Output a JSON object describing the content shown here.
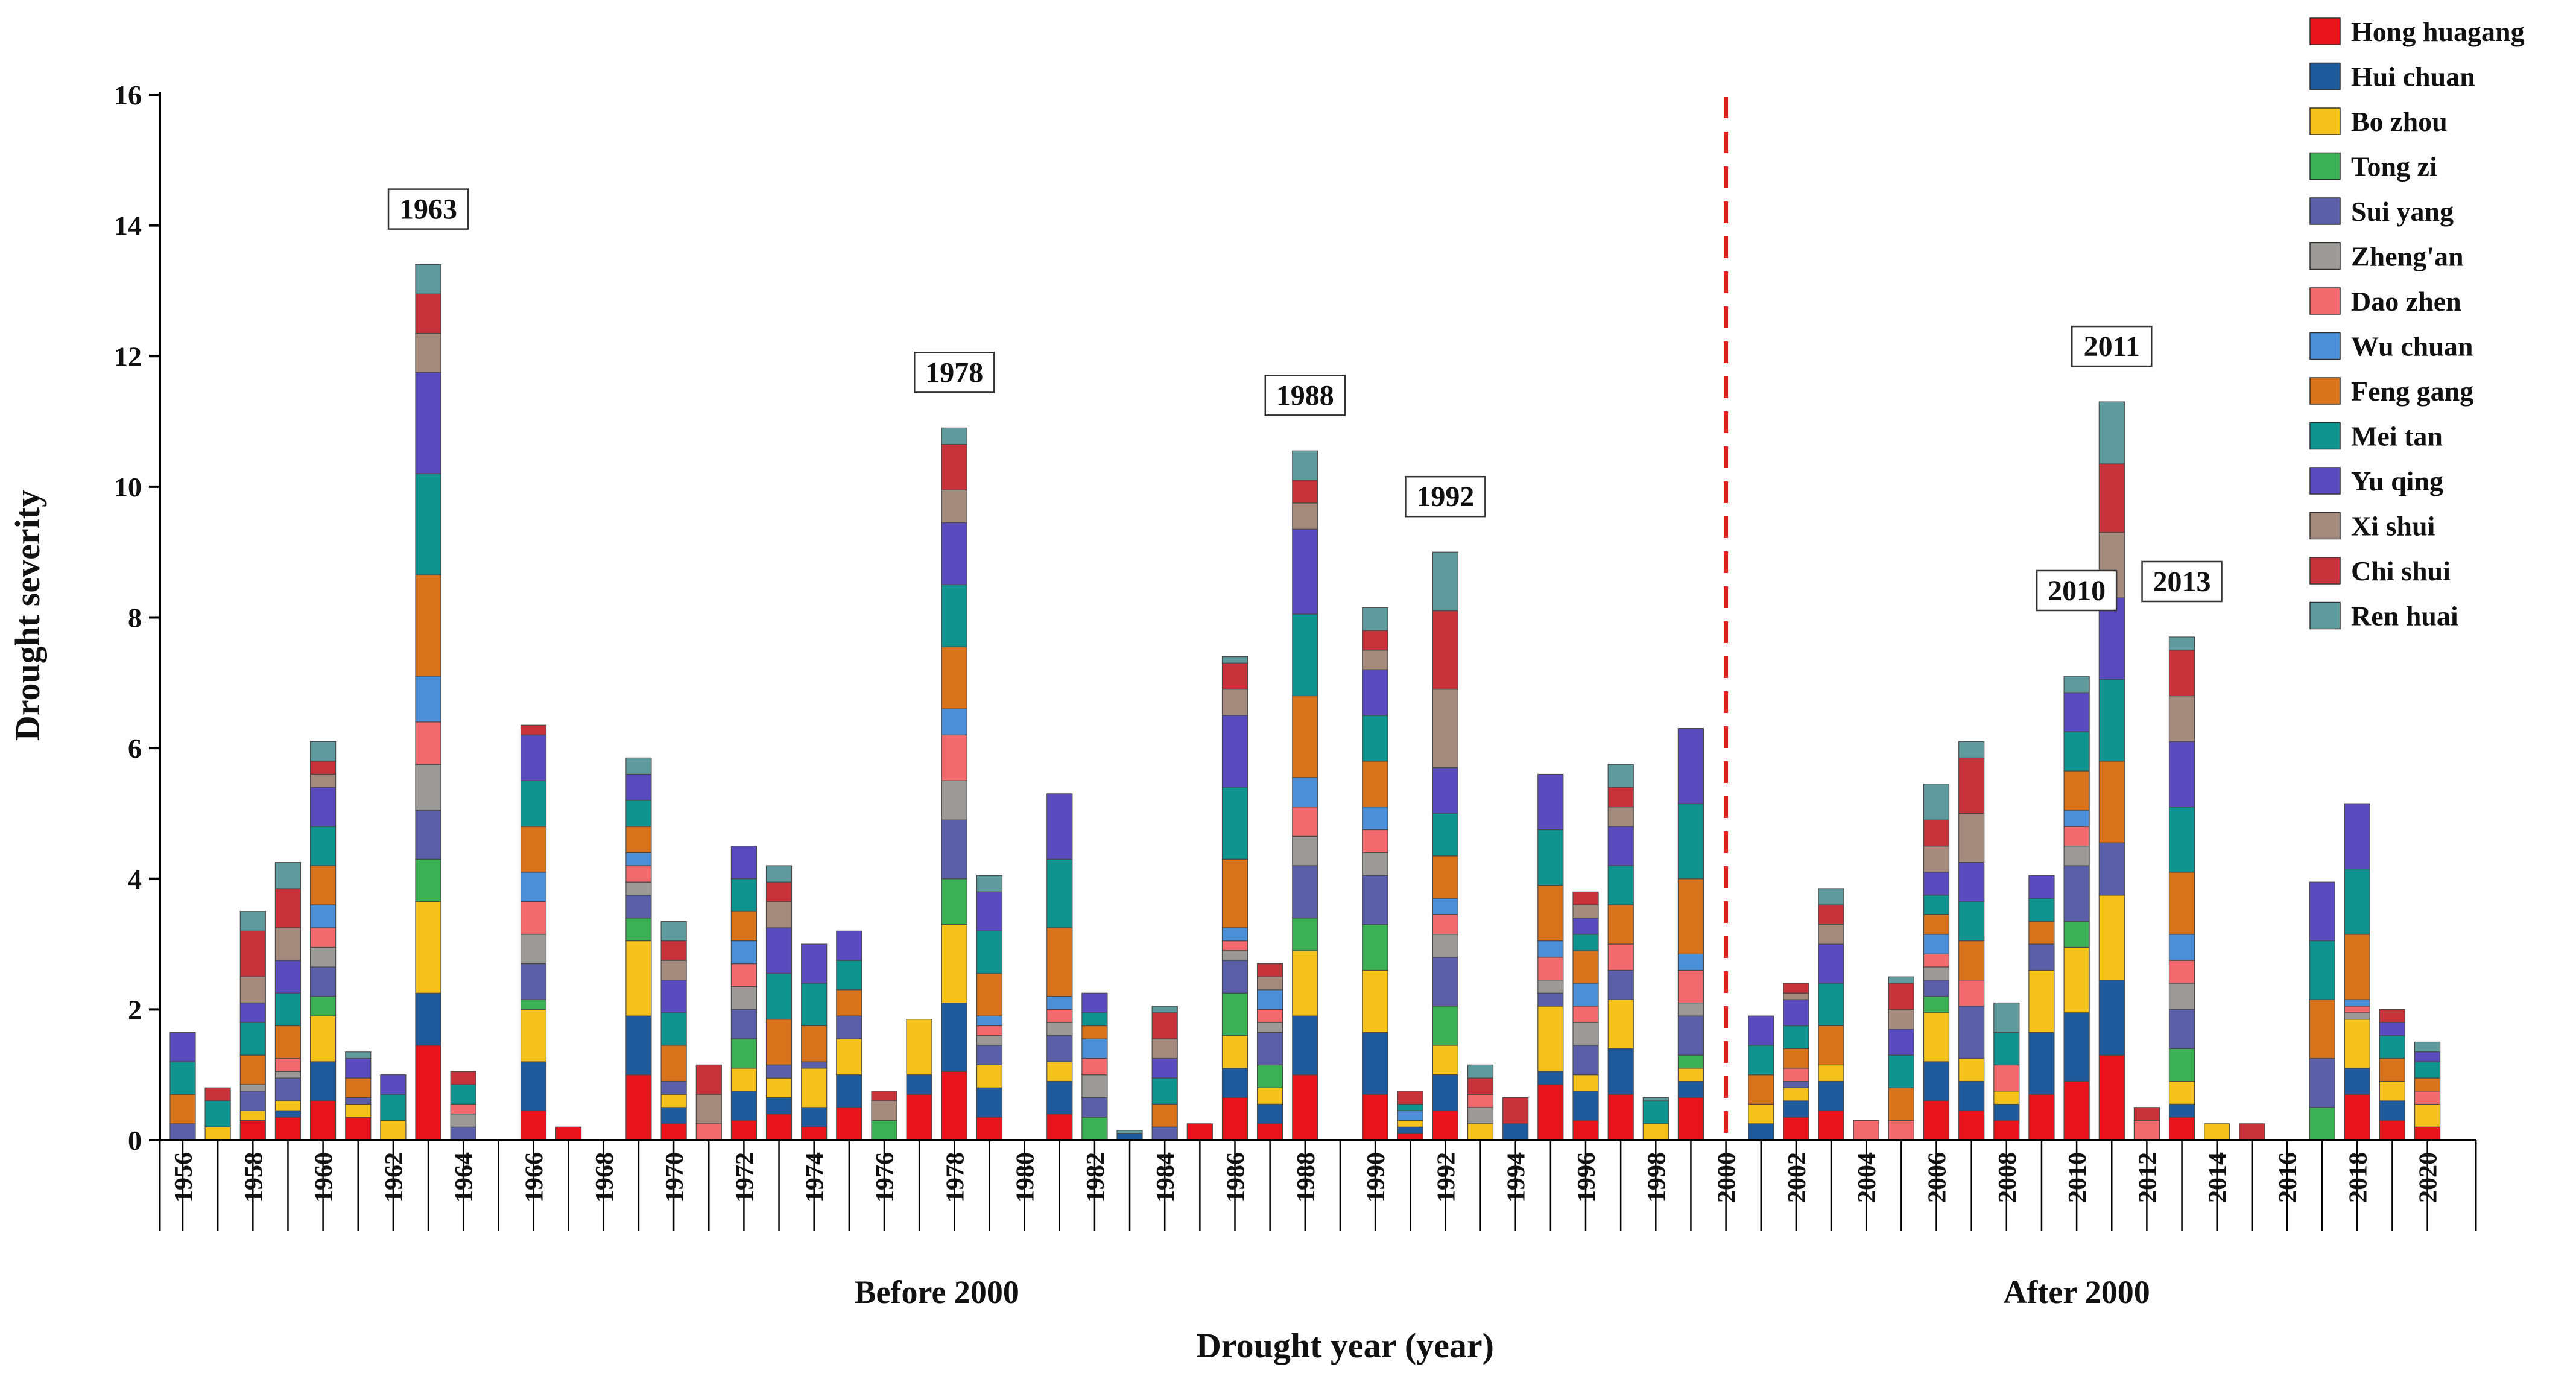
{
  "chart_data": {
    "type": "bar",
    "stacked": true,
    "ylabel": "Drought severity",
    "xlabel": "Drought year (year)",
    "ylim": [
      0,
      16
    ],
    "y_ticks": [
      0,
      2,
      4,
      6,
      8,
      10,
      12,
      14,
      16
    ],
    "x_range": [
      1956,
      2020
    ],
    "x_tick_step": 2,
    "period_labels": [
      {
        "text": "Before 2000",
        "center_year": 1977.5
      },
      {
        "text": "After 2000",
        "center_year": 2010
      }
    ],
    "divider_year": 2000,
    "divider_color": "#e0201c",
    "legend_position": "top-right",
    "annotations": [
      {
        "text": "1963",
        "year": 1963
      },
      {
        "text": "1978",
        "year": 1978
      },
      {
        "text": "1988",
        "year": 1988
      },
      {
        "text": "1992",
        "year": 1992
      },
      {
        "text": "2010",
        "year": 2010
      },
      {
        "text": "2011",
        "year": 2011
      },
      {
        "text": "2013",
        "year": 2013
      }
    ],
    "series": [
      {
        "name": "Hong huagang",
        "color": "#e8141c"
      },
      {
        "name": "Hui chuan",
        "color": "#1f5a9c"
      },
      {
        "name": "Bo zhou",
        "color": "#f5c21b"
      },
      {
        "name": "Tong zi",
        "color": "#3cb054"
      },
      {
        "name": "Sui yang",
        "color": "#5b5ea8"
      },
      {
        "name": "Zheng'an",
        "color": "#9c9a96"
      },
      {
        "name": "Dao zhen",
        "color": "#f26a6e"
      },
      {
        "name": "Wu chuan",
        "color": "#4a8fd8"
      },
      {
        "name": "Feng gang",
        "color": "#d8731c"
      },
      {
        "name": "Mei tan",
        "color": "#0f9490"
      },
      {
        "name": "Yu qing",
        "color": "#5a4cbe"
      },
      {
        "name": "Xi shui",
        "color": "#a48a7c"
      },
      {
        "name": "Chi shui",
        "color": "#c8323a"
      },
      {
        "name": "Ren huai",
        "color": "#5f9a9c"
      }
    ],
    "years": [
      {
        "year": 1956,
        "values": [
          0,
          0,
          0,
          0,
          0.25,
          0,
          0,
          0,
          0.45,
          0.5,
          0.45,
          0,
          0,
          0
        ]
      },
      {
        "year": 1957,
        "values": [
          0,
          0,
          0.2,
          0,
          0,
          0,
          0,
          0,
          0,
          0.4,
          0,
          0,
          0.2,
          0
        ]
      },
      {
        "year": 1958,
        "values": [
          0.3,
          0,
          0.15,
          0,
          0.3,
          0.1,
          0,
          0,
          0.45,
          0.5,
          0.3,
          0.4,
          0.7,
          0.3
        ]
      },
      {
        "year": 1959,
        "values": [
          0.35,
          0.1,
          0.15,
          0,
          0.35,
          0.1,
          0.2,
          0,
          0.5,
          0.5,
          0.5,
          0.5,
          0.6,
          0.4
        ]
      },
      {
        "year": 1960,
        "values": [
          0.6,
          0.6,
          0.7,
          0.3,
          0.45,
          0.3,
          0.3,
          0.35,
          0.6,
          0.6,
          0.6,
          0.2,
          0.2,
          0.3
        ]
      },
      {
        "year": 1961,
        "values": [
          0.35,
          0,
          0.2,
          0,
          0.1,
          0,
          0,
          0,
          0.3,
          0,
          0.3,
          0,
          0,
          0.1
        ]
      },
      {
        "year": 1962,
        "values": [
          0,
          0,
          0.3,
          0,
          0,
          0,
          0,
          0,
          0,
          0.4,
          0.3,
          0,
          0,
          0
        ]
      },
      {
        "year": 1963,
        "values": [
          1.45,
          0.8,
          1.4,
          0.65,
          0.75,
          0.7,
          0.65,
          0.7,
          1.55,
          1.55,
          1.55,
          0.6,
          0.6,
          0.45
        ]
      },
      {
        "year": 1964,
        "values": [
          0,
          0,
          0,
          0,
          0.2,
          0.2,
          0.15,
          0,
          0,
          0.3,
          0,
          0,
          0.2,
          0
        ]
      },
      {
        "year": 1966,
        "values": [
          0.45,
          0.75,
          0.8,
          0.15,
          0.55,
          0.45,
          0.5,
          0.45,
          0.7,
          0.7,
          0.7,
          0,
          0.15,
          0
        ]
      },
      {
        "year": 1967,
        "values": [
          0.2,
          0,
          0,
          0,
          0,
          0,
          0,
          0,
          0,
          0,
          0,
          0,
          0,
          0
        ]
      },
      {
        "year": 1969,
        "values": [
          1.0,
          0.9,
          1.15,
          0.35,
          0.35,
          0.2,
          0.25,
          0.2,
          0.4,
          0.4,
          0.4,
          0,
          0,
          0.25
        ]
      },
      {
        "year": 1970,
        "values": [
          0.25,
          0.25,
          0.2,
          0,
          0.2,
          0,
          0,
          0,
          0.55,
          0.5,
          0.5,
          0.3,
          0.3,
          0.3
        ]
      },
      {
        "year": 1971,
        "values": [
          0,
          0,
          0,
          0,
          0,
          0,
          0.25,
          0,
          0,
          0,
          0,
          0.45,
          0.45,
          0
        ]
      },
      {
        "year": 1972,
        "values": [
          0.3,
          0.45,
          0.35,
          0.45,
          0.45,
          0.35,
          0.35,
          0.35,
          0.45,
          0.5,
          0.5,
          0,
          0,
          0
        ]
      },
      {
        "year": 1973,
        "values": [
          0.4,
          0.25,
          0.3,
          0,
          0.2,
          0,
          0,
          0,
          0.7,
          0.7,
          0.7,
          0.4,
          0.3,
          0.25
        ]
      },
      {
        "year": 1974,
        "values": [
          0.2,
          0.3,
          0.6,
          0,
          0.1,
          0,
          0,
          0,
          0.55,
          0.65,
          0.6,
          0,
          0,
          0
        ]
      },
      {
        "year": 1975,
        "values": [
          0.5,
          0.5,
          0.55,
          0,
          0.35,
          0,
          0,
          0,
          0.4,
          0.45,
          0.45,
          0,
          0,
          0
        ]
      },
      {
        "year": 1976,
        "values": [
          0,
          0,
          0,
          0.3,
          0,
          0,
          0,
          0,
          0,
          0,
          0,
          0.3,
          0.15,
          0
        ]
      },
      {
        "year": 1977,
        "values": [
          0.7,
          0.3,
          0.85,
          0,
          0,
          0,
          0,
          0,
          0,
          0,
          0,
          0,
          0,
          0
        ]
      },
      {
        "year": 1978,
        "values": [
          1.05,
          1.05,
          1.2,
          0.7,
          0.9,
          0.6,
          0.7,
          0.4,
          0.95,
          0.95,
          0.95,
          0.5,
          0.7,
          0.25
        ]
      },
      {
        "year": 1979,
        "values": [
          0.35,
          0.45,
          0.35,
          0,
          0.3,
          0.15,
          0.15,
          0.15,
          0.65,
          0.65,
          0.6,
          0,
          0,
          0.25
        ]
      },
      {
        "year": 1981,
        "values": [
          0.4,
          0.5,
          0.3,
          0,
          0.4,
          0.2,
          0.2,
          0.2,
          1.05,
          1.05,
          1.0,
          0,
          0,
          0
        ]
      },
      {
        "year": 1982,
        "values": [
          0,
          0,
          0,
          0.35,
          0.3,
          0.35,
          0.25,
          0.3,
          0.2,
          0.2,
          0.3,
          0,
          0,
          0
        ]
      },
      {
        "year": 1983,
        "values": [
          0,
          0.1,
          0,
          0,
          0,
          0,
          0,
          0,
          0,
          0,
          0,
          0,
          0,
          0.05
        ]
      },
      {
        "year": 1984,
        "values": [
          0,
          0,
          0,
          0,
          0.2,
          0,
          0,
          0,
          0.35,
          0.4,
          0.3,
          0.3,
          0.4,
          0.1
        ]
      },
      {
        "year": 1985,
        "values": [
          0.25,
          0,
          0,
          0,
          0,
          0,
          0,
          0,
          0,
          0,
          0,
          0,
          0,
          0
        ]
      },
      {
        "year": 1986,
        "values": [
          0.65,
          0.45,
          0.5,
          0.65,
          0.5,
          0.15,
          0.15,
          0.2,
          1.05,
          1.1,
          1.1,
          0.4,
          0.4,
          0.1
        ]
      },
      {
        "year": 1987,
        "values": [
          0.25,
          0.3,
          0.25,
          0.35,
          0.5,
          0.15,
          0.2,
          0.3,
          0,
          0,
          0,
          0.2,
          0.2,
          0
        ]
      },
      {
        "year": 1988,
        "values": [
          1.0,
          0.9,
          1.0,
          0.5,
          0.8,
          0.45,
          0.45,
          0.45,
          1.25,
          1.25,
          1.3,
          0.4,
          0.35,
          0.45
        ]
      },
      {
        "year": 1990,
        "values": [
          0.7,
          0.95,
          0.95,
          0.7,
          0.75,
          0.35,
          0.35,
          0.35,
          0.7,
          0.7,
          0.7,
          0.3,
          0.3,
          0.35
        ]
      },
      {
        "year": 1991,
        "values": [
          0.1,
          0.1,
          0.1,
          0,
          0,
          0,
          0,
          0.15,
          0,
          0.1,
          0,
          0,
          0.2,
          0
        ]
      },
      {
        "year": 1992,
        "values": [
          0.45,
          0.55,
          0.45,
          0.6,
          0.75,
          0.35,
          0.3,
          0.25,
          0.65,
          0.65,
          0.7,
          1.2,
          1.2,
          0.9
        ]
      },
      {
        "year": 1993,
        "values": [
          0,
          0,
          0.25,
          0,
          0,
          0.25,
          0.2,
          0,
          0,
          0,
          0,
          0,
          0.25,
          0.2
        ]
      },
      {
        "year": 1994,
        "values": [
          0,
          0.25,
          0,
          0,
          0,
          0,
          0,
          0,
          0,
          0,
          0,
          0,
          0.4,
          0
        ]
      },
      {
        "year": 1995,
        "values": [
          0.85,
          0.2,
          1.0,
          0,
          0.2,
          0.2,
          0.35,
          0.25,
          0.85,
          0.85,
          0.85,
          0,
          0,
          0
        ]
      },
      {
        "year": 1996,
        "values": [
          0.3,
          0.45,
          0.25,
          0,
          0.45,
          0.35,
          0.25,
          0.35,
          0.5,
          0.25,
          0.25,
          0.2,
          0.2,
          0
        ]
      },
      {
        "year": 1997,
        "values": [
          0.7,
          0.7,
          0.75,
          0,
          0.45,
          0,
          0.4,
          0,
          0.6,
          0.6,
          0.6,
          0.3,
          0.3,
          0.35
        ]
      },
      {
        "year": 1998,
        "values": [
          0,
          0,
          0.25,
          0,
          0,
          0,
          0,
          0,
          0,
          0.35,
          0,
          0,
          0,
          0.05
        ]
      },
      {
        "year": 1999,
        "values": [
          0.65,
          0.25,
          0.2,
          0.2,
          0.6,
          0.2,
          0.5,
          0.25,
          1.15,
          1.15,
          1.15,
          0,
          0,
          0
        ]
      },
      {
        "year": 2001,
        "values": [
          0,
          0.25,
          0.3,
          0,
          0,
          0,
          0,
          0,
          0.45,
          0.45,
          0.45,
          0,
          0,
          0
        ]
      },
      {
        "year": 2002,
        "values": [
          0.35,
          0.25,
          0.2,
          0,
          0.1,
          0,
          0.2,
          0,
          0.3,
          0.35,
          0.4,
          0.1,
          0.15,
          0
        ]
      },
      {
        "year": 2003,
        "values": [
          0.45,
          0.45,
          0.25,
          0,
          0,
          0,
          0,
          0,
          0.6,
          0.65,
          0.6,
          0.3,
          0.3,
          0.25
        ]
      },
      {
        "year": 2004,
        "values": [
          0,
          0,
          0,
          0,
          0,
          0,
          0.3,
          0,
          0,
          0,
          0,
          0,
          0,
          0
        ]
      },
      {
        "year": 2005,
        "values": [
          0,
          0,
          0,
          0,
          0,
          0,
          0.3,
          0,
          0.5,
          0.5,
          0.4,
          0.3,
          0.4,
          0.1
        ]
      },
      {
        "year": 2006,
        "values": [
          0.6,
          0.6,
          0.75,
          0.25,
          0.25,
          0.2,
          0.2,
          0.3,
          0.3,
          0.3,
          0.35,
          0.4,
          0.4,
          0.55
        ]
      },
      {
        "year": 2007,
        "values": [
          0.45,
          0.45,
          0.35,
          0,
          0.8,
          0,
          0.4,
          0,
          0.6,
          0.6,
          0.6,
          0.75,
          0.85,
          0.25
        ]
      },
      {
        "year": 2008,
        "values": [
          0.3,
          0.25,
          0.2,
          0,
          0,
          0,
          0.4,
          0,
          0,
          0.5,
          0,
          0,
          0,
          0.45
        ]
      },
      {
        "year": 2009,
        "values": [
          0.7,
          0.95,
          0.95,
          0,
          0.4,
          0,
          0,
          0,
          0.35,
          0.35,
          0.35,
          0,
          0,
          0
        ]
      },
      {
        "year": 2010,
        "values": [
          0.9,
          1.05,
          1.0,
          0.4,
          0.85,
          0.3,
          0.3,
          0.25,
          0.6,
          0.6,
          0.6,
          0,
          0,
          0.25
        ]
      },
      {
        "year": 2011,
        "values": [
          1.3,
          1.15,
          1.3,
          0,
          0.8,
          0,
          0,
          0,
          1.25,
          1.25,
          1.25,
          1.0,
          1.05,
          0.95
        ]
      },
      {
        "year": 2012,
        "values": [
          0,
          0,
          0,
          0,
          0,
          0,
          0.3,
          0,
          0,
          0,
          0,
          0,
          0.2,
          0
        ]
      },
      {
        "year": 2013,
        "values": [
          0.35,
          0.2,
          0.35,
          0.5,
          0.6,
          0.4,
          0.35,
          0.4,
          0.95,
          1.0,
          1.0,
          0.7,
          0.7,
          0.2
        ]
      },
      {
        "year": 2014,
        "values": [
          0,
          0,
          0.25,
          0,
          0,
          0,
          0,
          0,
          0,
          0,
          0,
          0,
          0,
          0
        ]
      },
      {
        "year": 2015,
        "values": [
          0,
          0,
          0,
          0,
          0,
          0,
          0,
          0,
          0,
          0,
          0,
          0,
          0.25,
          0
        ]
      },
      {
        "year": 2017,
        "values": [
          0,
          0,
          0,
          0.5,
          0.75,
          0,
          0,
          0,
          0.9,
          0.9,
          0.9,
          0,
          0,
          0
        ]
      },
      {
        "year": 2018,
        "values": [
          0.7,
          0.4,
          0.75,
          0,
          0,
          0.1,
          0.1,
          0.1,
          1.0,
          1.0,
          1.0,
          0,
          0,
          0
        ]
      },
      {
        "year": 2019,
        "values": [
          0.3,
          0.3,
          0.3,
          0,
          0,
          0,
          0,
          0,
          0.35,
          0.35,
          0.2,
          0,
          0.2,
          0
        ]
      },
      {
        "year": 2020,
        "values": [
          0.2,
          0,
          0.35,
          0,
          0,
          0,
          0.2,
          0,
          0.2,
          0.25,
          0.15,
          0,
          0,
          0.15
        ]
      }
    ]
  }
}
